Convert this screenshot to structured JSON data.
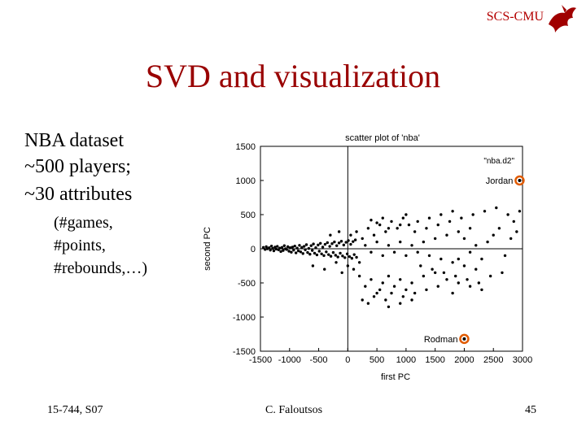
{
  "header": {
    "brand": "SCS-CMU"
  },
  "slide": {
    "title": "SVD and visualization",
    "bullets": [
      "NBA dataset",
      "~500 players;",
      "~30 attributes"
    ],
    "sub_bullets": [
      "(#games,",
      "#points,",
      "#rebounds,…)"
    ]
  },
  "footer": {
    "course": "15-744, S07",
    "author": "C. Faloutsos",
    "page": "45"
  },
  "colors": {
    "title": "#990000",
    "brand": "#b40000",
    "highlight": "#e05a00"
  },
  "chart_data": {
    "type": "scatter",
    "title": "scatter plot of 'nba'",
    "xlabel": "first PC",
    "ylabel": "second PC",
    "xlim": [
      -1500,
      3000
    ],
    "ylim": [
      -1500,
      1500
    ],
    "xticks": [
      -1500,
      -1000,
      -500,
      0,
      500,
      1000,
      1500,
      2000,
      2500,
      3000
    ],
    "yticks": [
      1500,
      1000,
      500,
      0,
      -500,
      -1000,
      -1500
    ],
    "legend": "top-right",
    "series": [
      {
        "name": "\"nba.d2\"",
        "points": [
          [
            -1450,
            20
          ],
          [
            -1420,
            -10
          ],
          [
            -1400,
            30
          ],
          [
            -1380,
            0
          ],
          [
            -1350,
            15
          ],
          [
            -1330,
            -20
          ],
          [
            -1310,
            40
          ],
          [
            -1290,
            5
          ],
          [
            -1270,
            -30
          ],
          [
            -1250,
            25
          ],
          [
            -1230,
            -5
          ],
          [
            -1210,
            35
          ],
          [
            -1190,
            -15
          ],
          [
            -1170,
            10
          ],
          [
            -1150,
            -40
          ],
          [
            -1130,
            20
          ],
          [
            -1110,
            -25
          ],
          [
            -1090,
            45
          ],
          [
            -1070,
            0
          ],
          [
            -1050,
            -10
          ],
          [
            -1030,
            30
          ],
          [
            -1010,
            -35
          ],
          [
            -990,
            15
          ],
          [
            -970,
            -50
          ],
          [
            -950,
            25
          ],
          [
            -930,
            -20
          ],
          [
            -910,
            40
          ],
          [
            -890,
            -60
          ],
          [
            -870,
            10
          ],
          [
            -850,
            -30
          ],
          [
            -830,
            50
          ],
          [
            -810,
            -45
          ],
          [
            -790,
            20
          ],
          [
            -770,
            -70
          ],
          [
            -750,
            35
          ],
          [
            -730,
            -15
          ],
          [
            -710,
            60
          ],
          [
            -690,
            -55
          ],
          [
            -670,
            5
          ],
          [
            -650,
            -80
          ],
          [
            -630,
            45
          ],
          [
            -610,
            -25
          ],
          [
            -590,
            70
          ],
          [
            -570,
            -65
          ],
          [
            -550,
            15
          ],
          [
            -530,
            -90
          ],
          [
            -510,
            55
          ],
          [
            -490,
            -35
          ],
          [
            -470,
            80
          ],
          [
            -450,
            -75
          ],
          [
            -430,
            25
          ],
          [
            -410,
            -100
          ],
          [
            -390,
            65
          ],
          [
            -370,
            -45
          ],
          [
            -350,
            90
          ],
          [
            -330,
            -85
          ],
          [
            -310,
            35
          ],
          [
            -290,
            -110
          ],
          [
            -270,
            75
          ],
          [
            -250,
            -55
          ],
          [
            -230,
            100
          ],
          [
            -210,
            -95
          ],
          [
            -190,
            45
          ],
          [
            -170,
            -120
          ],
          [
            -150,
            85
          ],
          [
            -130,
            -65
          ],
          [
            -110,
            110
          ],
          [
            -90,
            -105
          ],
          [
            -70,
            55
          ],
          [
            -50,
            -130
          ],
          [
            -30,
            95
          ],
          [
            -10,
            -75
          ],
          [
            10,
            120
          ],
          [
            30,
            -115
          ],
          [
            50,
            65
          ],
          [
            70,
            -140
          ],
          [
            90,
            105
          ],
          [
            110,
            -85
          ],
          [
            130,
            130
          ],
          [
            150,
            -125
          ],
          [
            -600,
            -250
          ],
          [
            -400,
            -300
          ],
          [
            -200,
            -200
          ],
          [
            -100,
            -350
          ],
          [
            0,
            -250
          ],
          [
            100,
            -300
          ],
          [
            200,
            -200
          ],
          [
            -300,
            200
          ],
          [
            -150,
            250
          ],
          [
            50,
            200
          ],
          [
            150,
            250
          ],
          [
            250,
            150
          ],
          [
            350,
            300
          ],
          [
            450,
            200
          ],
          [
            550,
            350
          ],
          [
            650,
            250
          ],
          [
            750,
            400
          ],
          [
            850,
            300
          ],
          [
            950,
            450
          ],
          [
            1050,
            350
          ],
          [
            200,
            -400
          ],
          [
            300,
            -550
          ],
          [
            400,
            -450
          ],
          [
            500,
            -650
          ],
          [
            600,
            -500
          ],
          [
            700,
            -400
          ],
          [
            800,
            -550
          ],
          [
            900,
            -450
          ],
          [
            1000,
            -600
          ],
          [
            1100,
            -500
          ],
          [
            250,
            -750
          ],
          [
            350,
            -800
          ],
          [
            450,
            -700
          ],
          [
            550,
            -600
          ],
          [
            650,
            -750
          ],
          [
            750,
            -650
          ],
          [
            950,
            -700
          ],
          [
            1150,
            -650
          ],
          [
            1350,
            -600
          ],
          [
            1550,
            -550
          ],
          [
            300,
            50
          ],
          [
            400,
            -50
          ],
          [
            500,
            100
          ],
          [
            600,
            -100
          ],
          [
            700,
            50
          ],
          [
            800,
            -50
          ],
          [
            900,
            100
          ],
          [
            1000,
            -100
          ],
          [
            1100,
            50
          ],
          [
            1200,
            -50
          ],
          [
            1300,
            100
          ],
          [
            1400,
            -100
          ],
          [
            1500,
            150
          ],
          [
            1600,
            -150
          ],
          [
            1700,
            200
          ],
          [
            1800,
            -200
          ],
          [
            1900,
            250
          ],
          [
            2000,
            -250
          ],
          [
            2100,
            300
          ],
          [
            2200,
            -300
          ],
          [
            1150,
            250
          ],
          [
            1250,
            -250
          ],
          [
            1350,
            300
          ],
          [
            1450,
            -300
          ],
          [
            1550,
            350
          ],
          [
            1650,
            -350
          ],
          [
            1750,
            400
          ],
          [
            1850,
            -400
          ],
          [
            1950,
            450
          ],
          [
            2050,
            -450
          ],
          [
            2150,
            500
          ],
          [
            2250,
            -500
          ],
          [
            2350,
            550
          ],
          [
            2450,
            -400
          ],
          [
            2550,
            600
          ],
          [
            2650,
            -350
          ],
          [
            2750,
            500
          ],
          [
            2850,
            400
          ],
          [
            2950,
            550
          ],
          [
            2400,
            100
          ],
          [
            2500,
            200
          ],
          [
            2600,
            300
          ],
          [
            2700,
            -100
          ],
          [
            2800,
            150
          ],
          [
            2900,
            250
          ],
          [
            2300,
            -150
          ],
          [
            2200,
            50
          ],
          [
            2100,
            -50
          ],
          [
            2000,
            150
          ],
          [
            1900,
            -150
          ],
          [
            1200,
            400
          ],
          [
            1400,
            450
          ],
          [
            1600,
            500
          ],
          [
            1800,
            550
          ],
          [
            1000,
            500
          ],
          [
            900,
            350
          ],
          [
            700,
            300
          ],
          [
            600,
            450
          ],
          [
            500,
            380
          ],
          [
            400,
            420
          ],
          [
            1300,
            -400
          ],
          [
            1500,
            -350
          ],
          [
            1700,
            -450
          ],
          [
            1900,
            -500
          ],
          [
            2100,
            -550
          ],
          [
            2300,
            -600
          ],
          [
            1100,
            -750
          ],
          [
            900,
            -800
          ],
          [
            700,
            -850
          ],
          [
            1800,
            -650
          ]
        ]
      }
    ],
    "annotations": [
      {
        "label": "Jordan",
        "x": 2950,
        "y": 1000
      },
      {
        "label": "Rodman",
        "x": 2000,
        "y": -1320
      }
    ]
  }
}
